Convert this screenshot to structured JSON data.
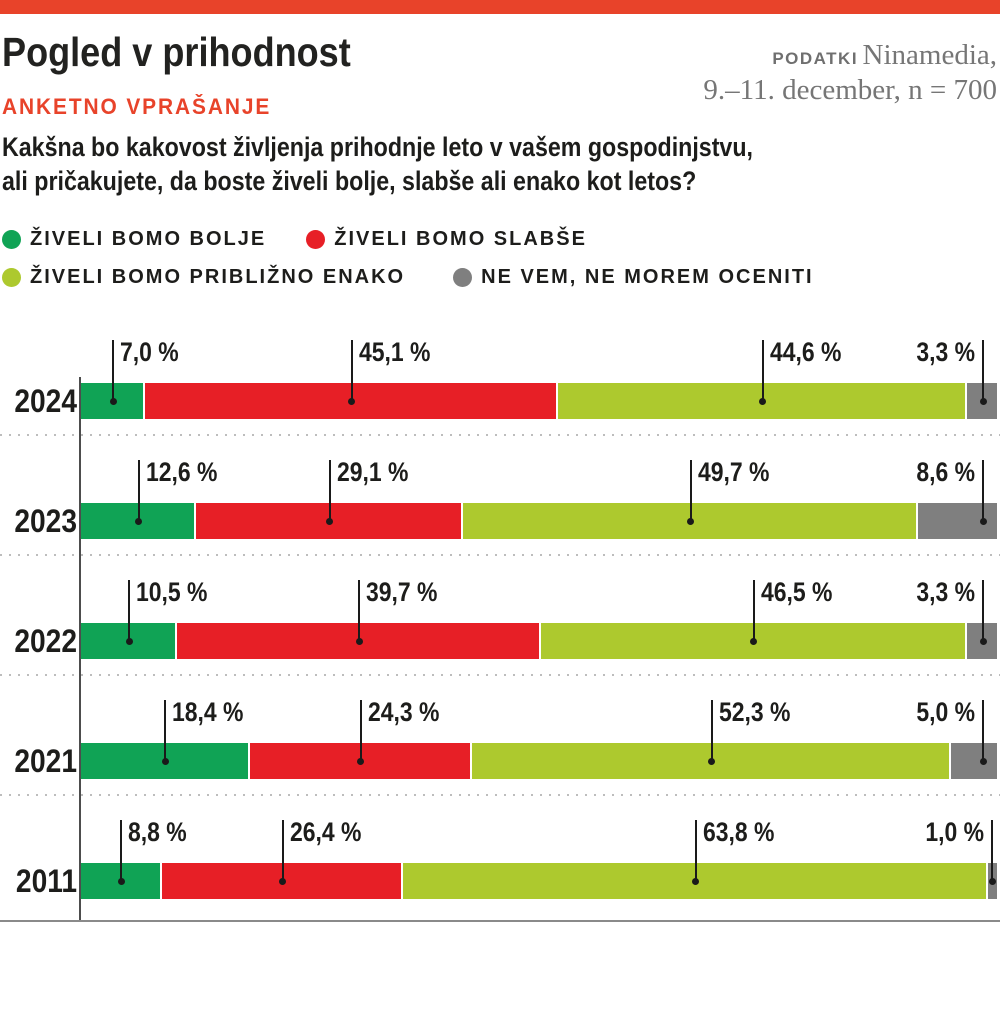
{
  "header": {
    "title": "Pogled v prihodnost",
    "kicker": "ANKETNO VPRAŠANJE",
    "source": {
      "label": "PODATKI",
      "name": "Ninamedia,",
      "detail": "9.–11. december, n = 700"
    },
    "question_line1": "Kakšna bo kakovost življenja prihodnje leto v vašem gospodinjstvu,",
    "question_line2": "ali pričakujete, da boste živeli bolje, slabše ali enako kot letos?"
  },
  "colors": {
    "accent": "#e8432a",
    "leader": "#1a1a1a",
    "axis": "#4d4d4d",
    "baseline": "#8a8a8a",
    "separator": "#bdbdbd"
  },
  "chart_data": {
    "type": "bar",
    "stacked": true,
    "orientation": "horizontal",
    "value_format": "comma-decimal, suffix ' %'",
    "categories": [
      "2024",
      "2023",
      "2022",
      "2021",
      "2011"
    ],
    "series": [
      {
        "name": "ŽIVELI BOMO BOLJE",
        "color": "#10a355",
        "values": [
          7.0,
          12.6,
          10.5,
          18.4,
          8.8
        ]
      },
      {
        "name": "ŽIVELI BOMO SLABŠE",
        "color": "#e71f26",
        "values": [
          45.1,
          29.1,
          39.7,
          24.3,
          26.4
        ]
      },
      {
        "name": "ŽIVELI BOMO PRIBLIŽNO ENAKO",
        "color": "#adc92e",
        "values": [
          44.6,
          49.7,
          46.5,
          52.3,
          63.8
        ]
      },
      {
        "name": "NE VEM, NE MOREM OCENITI",
        "color": "#7f7f7f",
        "values": [
          3.3,
          8.6,
          3.3,
          5.0,
          1.0
        ]
      }
    ],
    "xlim": [
      0,
      100
    ],
    "legend_position": "top",
    "grid": "dotted row separators"
  }
}
